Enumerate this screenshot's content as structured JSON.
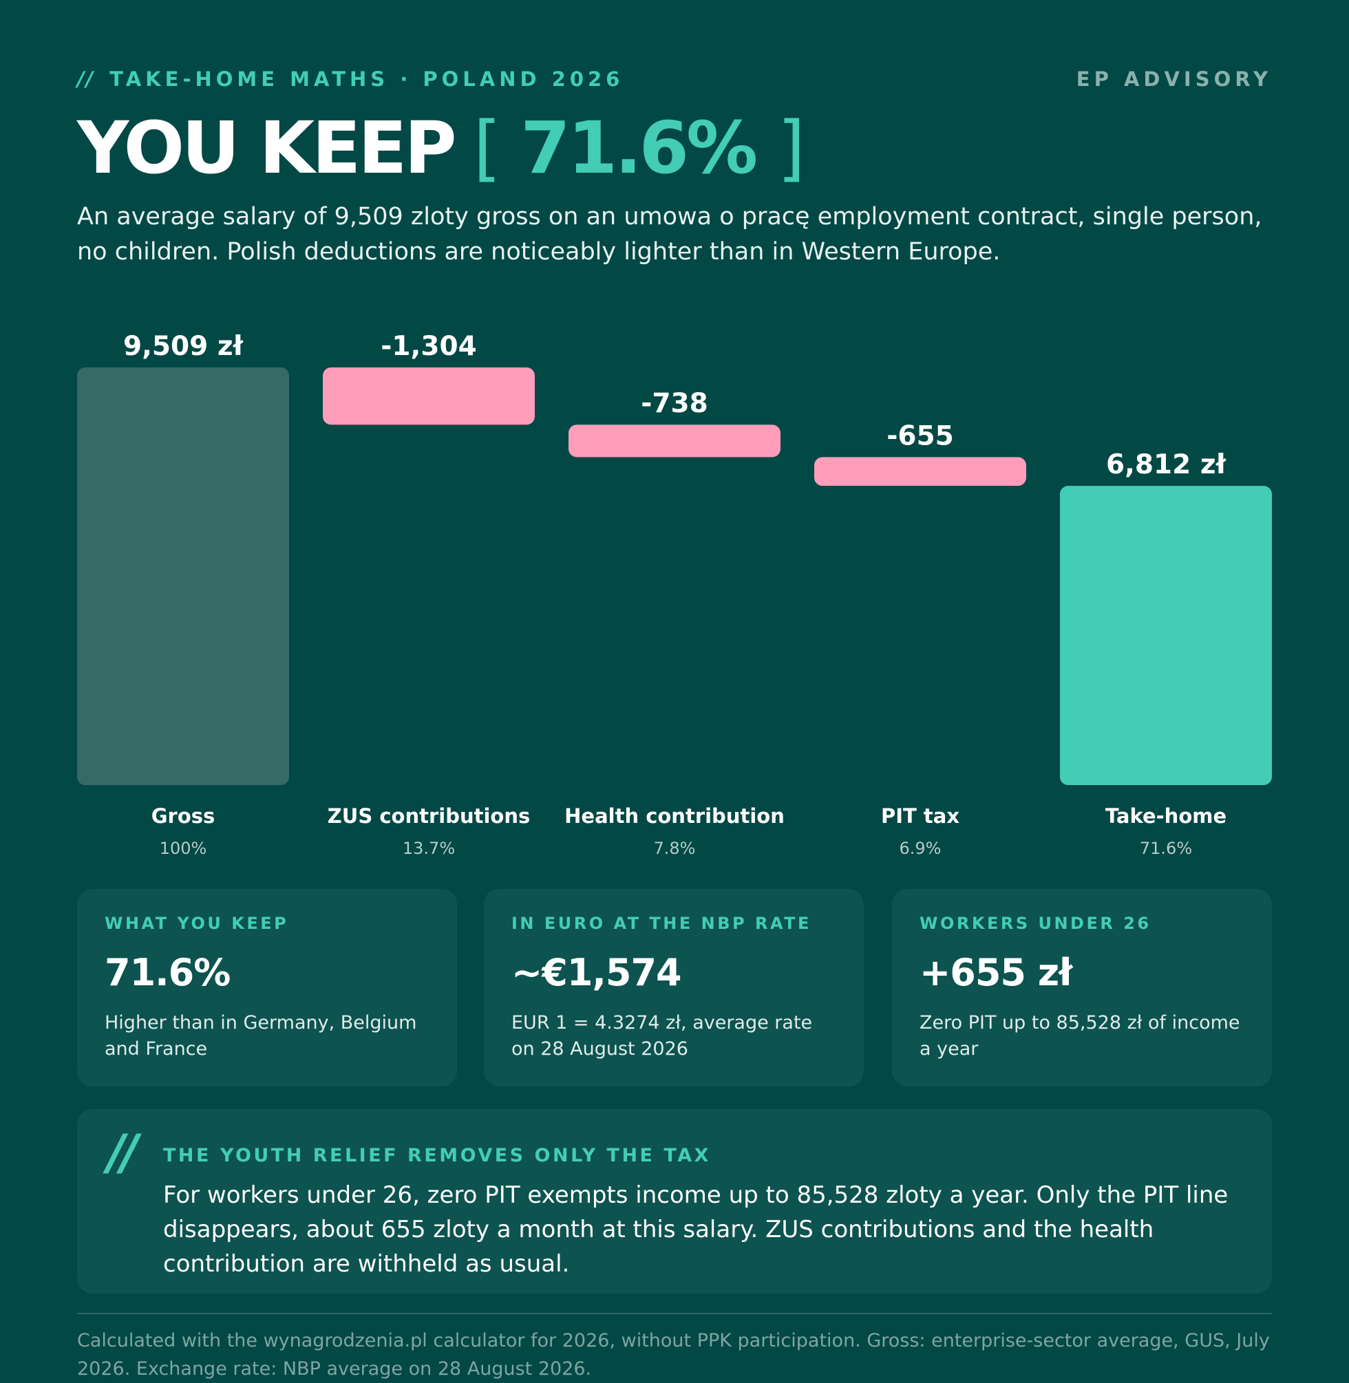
{
  "header": {
    "slashes": "//",
    "eyebrow": "TAKE-HOME MATHS · POLAND 2026",
    "brand": "EP ADVISORY",
    "headline_text": "YOU KEEP",
    "headline_bracket_open": "[",
    "headline_value": "71.6%",
    "headline_bracket_close": "]",
    "subtitle": "An average salary of 9,509 zloty gross on an umowa o pracę employment contract, single person, no children. Polish deductions are noticeably lighter than in Western Europe."
  },
  "chart_data": {
    "type": "bar",
    "subtype": "waterfall",
    "categories": [
      "Gross",
      "ZUS contributions",
      "Health contribution",
      "PIT tax",
      "Take-home"
    ],
    "values": [
      9509,
      -1304,
      -738,
      -655,
      6812
    ],
    "value_labels": [
      "9,509 zł",
      "-1,304",
      "-738",
      "-655",
      "6,812 zł"
    ],
    "percent_labels": [
      "100%",
      "13.7%",
      "7.8%",
      "6.9%",
      "71.6%"
    ],
    "kinds": [
      "total",
      "decrease",
      "decrease",
      "decrease",
      "total"
    ],
    "ylim": [
      0,
      9509
    ],
    "grid": false,
    "colors": {
      "gross": "#356a67",
      "decrease": "#ff9dba",
      "take_home": "#43cdb6"
    }
  },
  "cards": [
    {
      "title": "WHAT YOU KEEP",
      "value": "71.6%",
      "note": "Higher than in Germany, Belgium and France"
    },
    {
      "title": "IN EURO AT THE NBP RATE",
      "value": "~€1,574",
      "note": "EUR 1 = 4.3274 zł, average rate on 28 August 2026"
    },
    {
      "title": "WORKERS UNDER 26",
      "value": "+655 zł",
      "note": "Zero PIT up to 85,528 zł of income a year"
    }
  ],
  "callout": {
    "slashes": "//",
    "title": "THE YOUTH RELIEF REMOVES ONLY THE TAX",
    "body": "For workers under 26, zero PIT exempts income up to 85,528 zloty a year. Only the PIT line disappears, about 655 zloty a month at this salary. ZUS contributions and the health contribution are withheld as usual."
  },
  "footnote": "Calculated with the wynagrodzenia.pl calculator for 2026, without PPK participation. Gross: enterprise-sector average, GUS, July 2026. Exchange rate: NBP average on 28 August 2026.",
  "colors": {
    "background": "#024845",
    "accent": "#43cdb6",
    "card": "#0d5350",
    "deduction": "#ff9dba"
  }
}
